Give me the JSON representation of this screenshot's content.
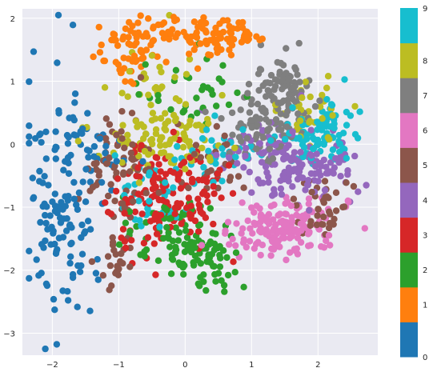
{
  "chart_data": {
    "type": "scatter",
    "title": "",
    "xlabel": "",
    "ylabel": "",
    "xlim": [
      -2.45,
      2.9
    ],
    "ylim": [
      -3.35,
      2.15
    ],
    "xticks": [
      -2,
      -1,
      0,
      1,
      2
    ],
    "yticks": [
      -3,
      -2,
      -1,
      0,
      1,
      2
    ],
    "grid": true,
    "background": "#eaeaf2",
    "point_count_per_class": 160,
    "colorbar": {
      "ticks": [
        0,
        1,
        2,
        3,
        4,
        5,
        6,
        7,
        8,
        9
      ],
      "colors": [
        "#1f77b4",
        "#ff7f0e",
        "#2ca02c",
        "#d62728",
        "#9467bd",
        "#8c564b",
        "#e377c2",
        "#7f7f7f",
        "#bcbd22",
        "#17becf"
      ]
    },
    "clusters": [
      {
        "class": 0,
        "color": "#1f77b4",
        "regions": [
          {
            "cx": -1.85,
            "cy": -0.95,
            "sx": 0.28,
            "sy": 0.95,
            "w": 0.8
          },
          {
            "cx": -1.5,
            "cy": 0.0,
            "sx": 0.3,
            "sy": 0.25,
            "w": 0.2
          }
        ]
      },
      {
        "class": 1,
        "color": "#ff7f0e",
        "regions": [
          {
            "cx": -0.9,
            "cy": 1.45,
            "sx": 0.2,
            "sy": 0.25,
            "w": 0.35
          },
          {
            "cx": -0.3,
            "cy": 1.8,
            "sx": 0.35,
            "sy": 0.12,
            "w": 0.25
          },
          {
            "cx": 0.5,
            "cy": 1.7,
            "sx": 0.3,
            "sy": 0.15,
            "w": 0.4
          }
        ]
      },
      {
        "class": 2,
        "color": "#2ca02c",
        "regions": [
          {
            "cx": 0.3,
            "cy": -1.9,
            "sx": 0.28,
            "sy": 0.25,
            "w": 0.45
          },
          {
            "cx": -0.2,
            "cy": -1.4,
            "sx": 0.35,
            "sy": 0.3,
            "w": 0.35
          },
          {
            "cx": 0.1,
            "cy": 0.8,
            "sx": 0.4,
            "sy": 0.3,
            "w": 0.2
          }
        ]
      },
      {
        "class": 3,
        "color": "#d62728",
        "regions": [
          {
            "cx": -0.3,
            "cy": -0.8,
            "sx": 0.45,
            "sy": 0.45,
            "w": 1.0
          }
        ]
      },
      {
        "class": 4,
        "color": "#9467bd",
        "regions": [
          {
            "cx": 1.8,
            "cy": -0.4,
            "sx": 0.4,
            "sy": 0.25,
            "w": 0.6
          },
          {
            "cx": 1.2,
            "cy": -0.2,
            "sx": 0.45,
            "sy": 0.3,
            "w": 0.4
          }
        ]
      },
      {
        "class": 5,
        "color": "#8c564b",
        "regions": [
          {
            "cx": -1.0,
            "cy": -0.3,
            "sx": 0.25,
            "sy": 0.4,
            "w": 0.45
          },
          {
            "cx": -1.05,
            "cy": -1.8,
            "sx": 0.15,
            "sy": 0.2,
            "w": 0.15
          },
          {
            "cx": 2.1,
            "cy": -0.9,
            "sx": 0.2,
            "sy": 0.25,
            "w": 0.25
          },
          {
            "cx": 0.3,
            "cy": -0.3,
            "sx": 0.3,
            "sy": 0.3,
            "w": 0.15
          }
        ]
      },
      {
        "class": 6,
        "color": "#e377c2",
        "regions": [
          {
            "cx": 1.45,
            "cy": -1.35,
            "sx": 0.4,
            "sy": 0.22,
            "w": 1.0
          }
        ]
      },
      {
        "class": 7,
        "color": "#7f7f7f",
        "regions": [
          {
            "cx": 1.5,
            "cy": 0.75,
            "sx": 0.22,
            "sy": 0.3,
            "w": 0.55
          },
          {
            "cx": 1.1,
            "cy": 0.2,
            "sx": 0.3,
            "sy": 0.3,
            "w": 0.45
          }
        ]
      },
      {
        "class": 8,
        "color": "#bcbd22",
        "regions": [
          {
            "cx": -0.35,
            "cy": 0.05,
            "sx": 0.45,
            "sy": 0.25,
            "w": 0.6
          },
          {
            "cx": -0.5,
            "cy": 0.9,
            "sx": 0.3,
            "sy": 0.3,
            "w": 0.2
          },
          {
            "cx": 1.9,
            "cy": 0.5,
            "sx": 0.25,
            "sy": 0.2,
            "w": 0.2
          }
        ]
      },
      {
        "class": 9,
        "color": "#17becf",
        "regions": [
          {
            "cx": 2.05,
            "cy": 0.2,
            "sx": 0.25,
            "sy": 0.25,
            "w": 0.5
          },
          {
            "cx": 0.6,
            "cy": -0.1,
            "sx": 0.3,
            "sy": 0.25,
            "w": 0.3
          },
          {
            "cx": -0.5,
            "cy": -0.75,
            "sx": 0.3,
            "sy": 0.3,
            "w": 0.2
          }
        ]
      }
    ]
  }
}
